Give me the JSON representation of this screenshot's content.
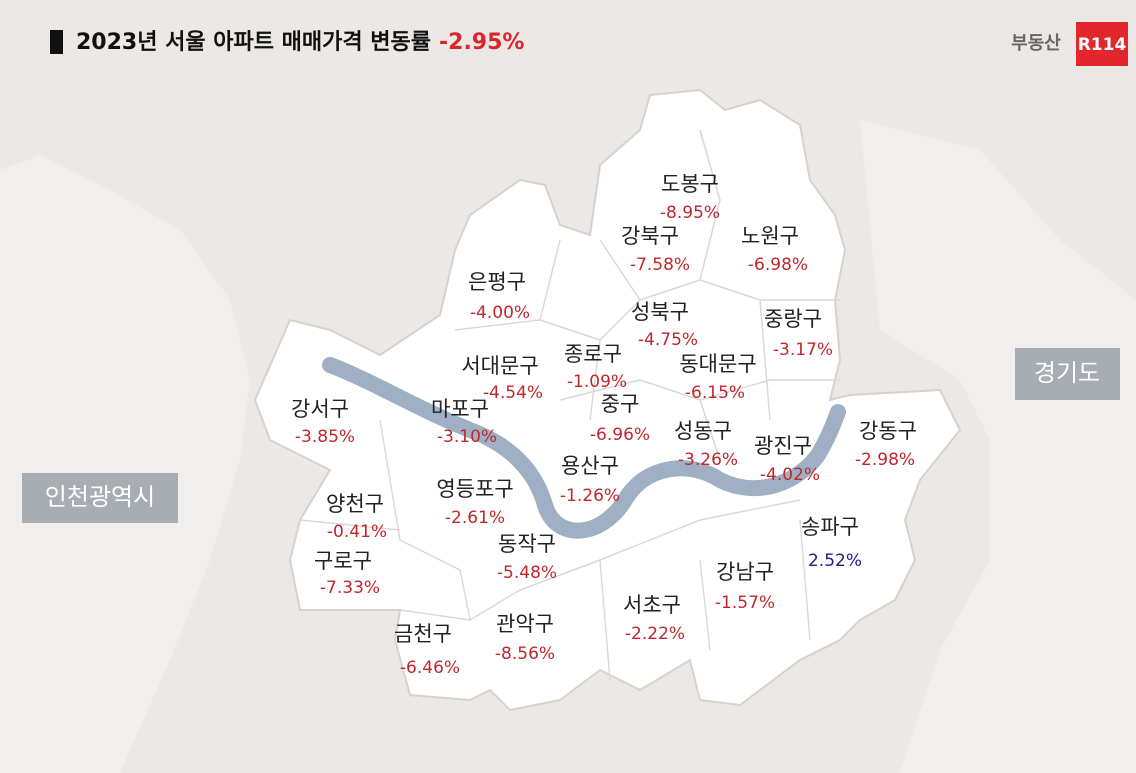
{
  "header": {
    "title": "2023년 서울 아파트 매매가격 변동률",
    "total": "-2.95%",
    "brand": "부동산",
    "brand_badge": "R114"
  },
  "regions": {
    "left": "인천광역시",
    "right": "경기도"
  },
  "districts": [
    {
      "name": "도봉구",
      "change": "-8.95%",
      "color": "#c0272d"
    },
    {
      "name": "강북구",
      "change": "-7.58%",
      "color": "#c0272d"
    },
    {
      "name": "노원구",
      "change": "-6.98%",
      "color": "#c0272d"
    },
    {
      "name": "은평구",
      "change": "-4.00%",
      "color": "#c0272d"
    },
    {
      "name": "성북구",
      "change": "-4.75%",
      "color": "#c0272d"
    },
    {
      "name": "중랑구",
      "change": "-3.17%",
      "color": "#c0272d"
    },
    {
      "name": "종로구",
      "change": "-1.09%",
      "color": "#c0272d"
    },
    {
      "name": "서대문구",
      "change": "-4.54%",
      "color": "#c0272d"
    },
    {
      "name": "동대문구",
      "change": "-6.15%",
      "color": "#c0272d"
    },
    {
      "name": "강서구",
      "change": "-3.85%",
      "color": "#c0272d"
    },
    {
      "name": "마포구",
      "change": "-3.10%",
      "color": "#c0272d"
    },
    {
      "name": "중구",
      "change": "-6.96%",
      "color": "#c0272d"
    },
    {
      "name": "성동구",
      "change": "-3.26%",
      "color": "#c0272d"
    },
    {
      "name": "광진구",
      "change": "-4.02%",
      "color": "#c0272d"
    },
    {
      "name": "강동구",
      "change": "-2.98%",
      "color": "#c0272d"
    },
    {
      "name": "용산구",
      "change": "-1.26%",
      "color": "#c0272d"
    },
    {
      "name": "영등포구",
      "change": "-2.61%",
      "color": "#c0272d"
    },
    {
      "name": "양천구",
      "change": "-0.41%",
      "color": "#c0272d"
    },
    {
      "name": "송파구",
      "change": "2.52%",
      "color": "#1a237e"
    },
    {
      "name": "동작구",
      "change": "-5.48%",
      "color": "#c0272d"
    },
    {
      "name": "구로구",
      "change": "-7.33%",
      "color": "#c0272d"
    },
    {
      "name": "강남구",
      "change": "-1.57%",
      "color": "#c0272d"
    },
    {
      "name": "서초구",
      "change": "-2.22%",
      "color": "#c0272d"
    },
    {
      "name": "관악구",
      "change": "-8.56%",
      "color": "#c0272d"
    },
    {
      "name": "금천구",
      "change": "-6.46%",
      "color": "#c0272d"
    }
  ]
}
